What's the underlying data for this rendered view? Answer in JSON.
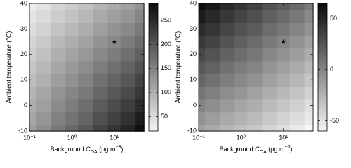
{
  "chart_data": [
    {
      "type": "contour",
      "xlabel": [
        "Background ",
        "C",
        "OA",
        " (μg m",
        "−3",
        ")"
      ],
      "ylabel": "Ambient temperature (°C)",
      "log_x": true,
      "colormap": "gray_r",
      "xlim": [
        0.1,
        50
      ],
      "ylim": [
        -10,
        40
      ],
      "xticks": [
        {
          "value": 0.1,
          "label": "10⁻¹"
        },
        {
          "value": 1,
          "label": "10⁰"
        },
        {
          "value": 10,
          "label": "10¹"
        }
      ],
      "yticks": [
        -10,
        0,
        10,
        20,
        30,
        40
      ],
      "clim": [
        20,
        285
      ],
      "cticks": [
        50,
        100,
        150,
        200,
        250
      ],
      "x": [
        0.1,
        0.2,
        0.5,
        1,
        2,
        5,
        10,
        20,
        50
      ],
      "y": [
        -10,
        -5,
        0,
        5,
        10,
        15,
        20,
        25,
        30,
        35,
        40
      ],
      "z": [
        [
          120,
          138,
          161,
          179,
          197,
          221,
          239,
          256,
          280
        ],
        [
          111,
          128,
          151,
          168,
          185,
          208,
          225,
          242,
          265
        ],
        [
          102,
          118,
          140,
          157,
          173,
          195,
          212,
          228,
          250
        ],
        [
          93,
          109,
          130,
          146,
          161,
          182,
          198,
          214,
          235
        ],
        [
          84,
          99,
          119,
          134,
          150,
          170,
          185,
          200,
          220
        ],
        [
          75,
          89,
          109,
          123,
          138,
          157,
          171,
          186,
          205
        ],
        [
          66,
          80,
          98,
          112,
          126,
          144,
          158,
          172,
          190
        ],
        [
          57,
          70,
          88,
          101,
          114,
          131,
          144,
          158,
          175
        ],
        [
          48,
          60,
          77,
          89,
          102,
          118,
          131,
          143,
          160
        ],
        [
          39,
          51,
          66,
          78,
          90,
          106,
          118,
          129,
          145
        ],
        [
          30,
          41,
          56,
          67,
          78,
          93,
          104,
          115,
          130
        ]
      ],
      "star": {
        "x": 10,
        "y": 25
      }
    },
    {
      "type": "contour",
      "xlabel": [
        "Background ",
        "C",
        "OA",
        " (μg m",
        "−3",
        ")"
      ],
      "ylabel": "Ambient temperature (°C)",
      "log_x": true,
      "colormap": "gray_r",
      "xlim": [
        0.1,
        50
      ],
      "ylim": [
        -10,
        40
      ],
      "xticks": [
        {
          "value": 0.1,
          "label": "10⁻¹"
        },
        {
          "value": 1,
          "label": "10⁰"
        },
        {
          "value": 10,
          "label": "10¹"
        }
      ],
      "yticks": [
        -10,
        0,
        10,
        20,
        30,
        40
      ],
      "clim": [
        -60,
        65
      ],
      "cticks": [
        -50,
        0,
        50
      ],
      "x": [
        0.1,
        0.2,
        0.5,
        1,
        2,
        5,
        10,
        20,
        50
      ],
      "y": [
        -10,
        -5,
        0,
        5,
        10,
        15,
        20,
        25,
        30,
        35,
        40
      ],
      "z": [
        [
          -15,
          -20,
          -26,
          -31,
          -36,
          -43,
          -48,
          -54,
          -60
        ],
        [
          -7,
          -13,
          -19,
          -24,
          -29,
          -36,
          -42,
          -47,
          -54
        ],
        [
          1,
          -5,
          -11,
          -17,
          -22,
          -29,
          -35,
          -40,
          -48
        ],
        [
          9,
          3,
          -4,
          -9,
          -15,
          -22,
          -28,
          -33,
          -41
        ],
        [
          17,
          11,
          4,
          -2,
          -7,
          -15,
          -21,
          -27,
          -35
        ],
        [
          25,
          19,
          11,
          5,
          0,
          -8,
          -14,
          -20,
          -28
        ],
        [
          33,
          27,
          19,
          13,
          7,
          -1,
          -7,
          -13,
          -21
        ],
        [
          41,
          35,
          27,
          20,
          14,
          6,
          0,
          -7,
          -15
        ],
        [
          49,
          43,
          34,
          27,
          22,
          13,
          7,
          0,
          -8
        ],
        [
          57,
          50,
          42,
          35,
          29,
          20,
          14,
          7,
          -2
        ],
        [
          65,
          58,
          49,
          43,
          36,
          27,
          21,
          14,
          5
        ]
      ],
      "star": {
        "x": 10,
        "y": 25
      }
    }
  ]
}
